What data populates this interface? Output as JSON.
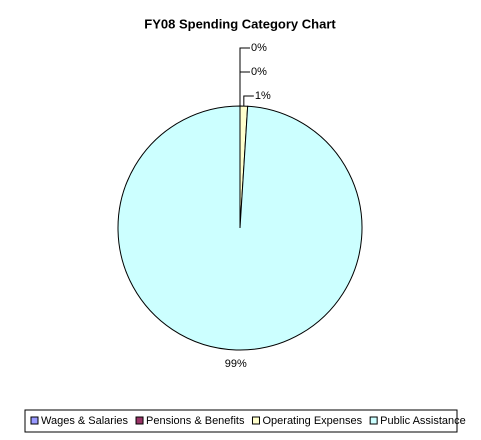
{
  "chart_data": {
    "type": "pie",
    "title": "FY08 Spending Category Chart",
    "categories": [
      "Wages & Salaries",
      "Pensions & Benefits",
      "Operating Expenses",
      "Public Assistance"
    ],
    "values": [
      0,
      0,
      1,
      99
    ],
    "value_labels": [
      "0%",
      "0%",
      "1%",
      "99%"
    ],
    "colors": [
      "#9999ff",
      "#993366",
      "#ffffcc",
      "#ccffff"
    ],
    "legend": "bottom"
  }
}
